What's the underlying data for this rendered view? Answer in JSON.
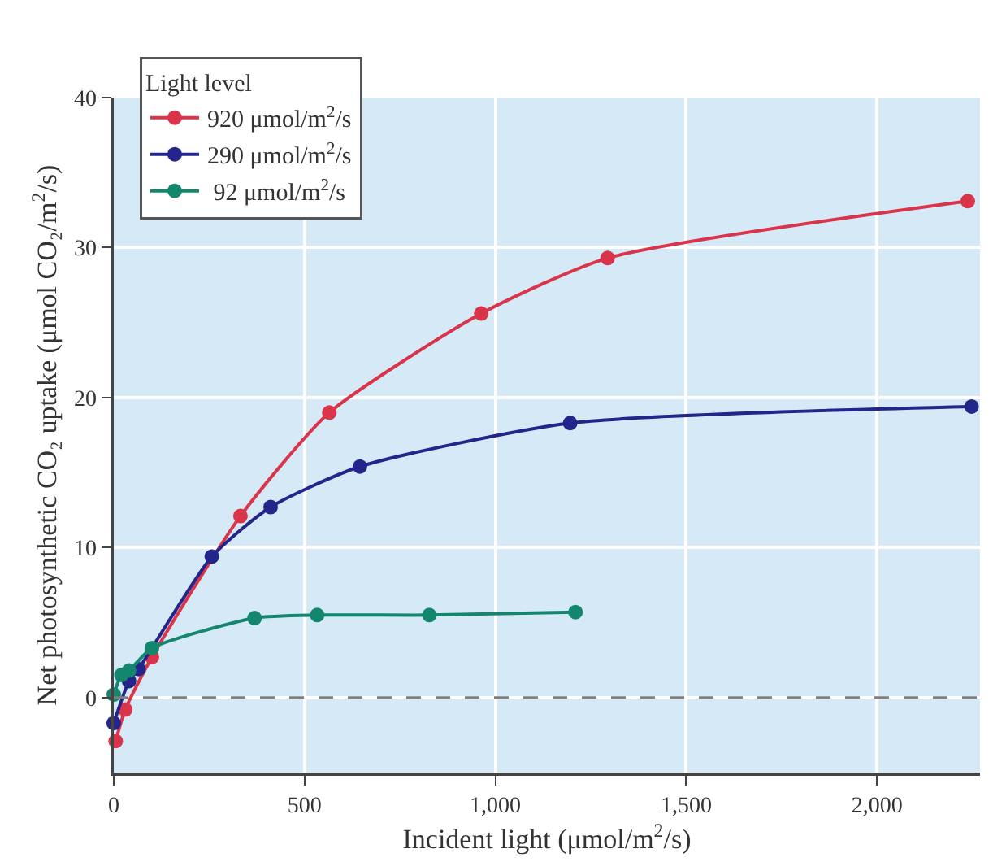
{
  "chart_data": {
    "type": "line",
    "xlabel": "Incident light (μmol/m$^{2}$/s)",
    "ylabel": "Net photosynthetic CO₂ uptake (μmol CO₂/m$^{2}$/s)",
    "legend_title": "Light level",
    "xlim": [
      0,
      2270
    ],
    "ylim": [
      -5,
      40
    ],
    "xticks": [
      0,
      500,
      {
        "value": 1000,
        "label": "1,000"
      },
      {
        "value": 1500,
        "label": "1,500"
      },
      {
        "value": 2000,
        "label": "2,000"
      }
    ],
    "yticks": [
      0,
      10,
      20,
      30,
      40
    ],
    "grid": true,
    "legend": "top left",
    "marker": "circle",
    "line_style": "solid",
    "ref_lines": [
      {
        "axis": "y",
        "value": 0,
        "color": "#7f7f7f",
        "line_style": "dashed"
      }
    ],
    "series": [
      {
        "name": "920 μmol/m$^{2}$/s",
        "color": "#d9344a",
        "x": [
          5,
          30,
          100,
          332,
          565,
          963,
          1294,
          2238
        ],
        "values": [
          -2.9,
          -0.8,
          2.7,
          12.1,
          19.0,
          25.6,
          29.3,
          33.1
        ]
      },
      {
        "name": "290 μmol/m$^{2}$/s",
        "color": "#23258a",
        "x": [
          0,
          15,
          40,
          65,
          257,
          411,
          645,
          1196,
          2248
        ],
        "values": [
          -1.7,
          null,
          1.1,
          1.9,
          9.4,
          12.7,
          15.4,
          18.3,
          19.4
        ]
      },
      {
        "name": " 92 μmol/m$^{2}$/s",
        "color": "#13876e",
        "x": [
          0,
          20,
          40,
          100,
          369,
          533,
          827,
          1210
        ],
        "values": [
          0.2,
          1.5,
          1.8,
          3.3,
          5.3,
          5.5,
          5.5,
          5.7
        ]
      }
    ]
  }
}
